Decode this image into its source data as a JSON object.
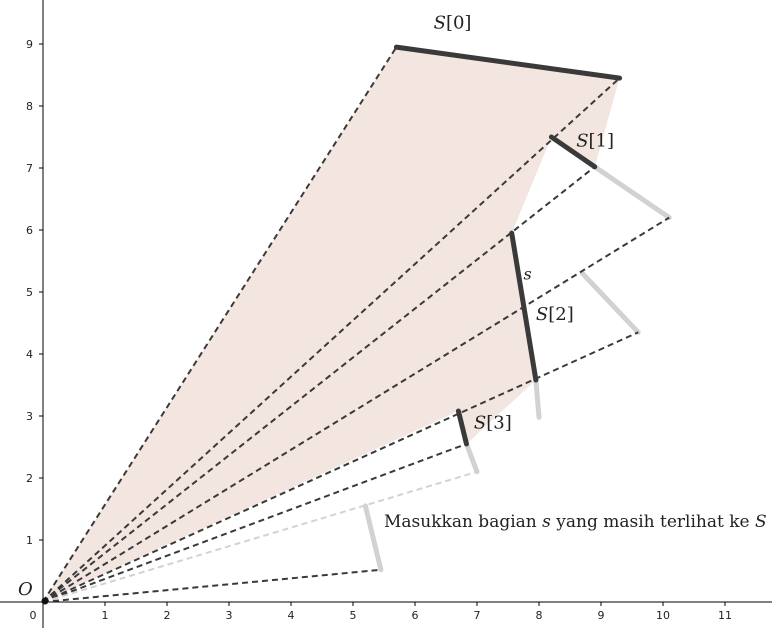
{
  "axes": {
    "x_ticks": [
      "0",
      "1",
      "2",
      "3",
      "4",
      "5",
      "6",
      "7",
      "8",
      "9",
      "10",
      "11"
    ],
    "y_ticks": [
      "1",
      "2",
      "3",
      "4",
      "5",
      "6",
      "7",
      "8",
      "9"
    ],
    "origin_label": "O"
  },
  "segments": [
    {
      "id": "S0",
      "label_var": "S",
      "label_idx": "[0]",
      "p1": [
        5.7,
        8.95
      ],
      "p2": [
        9.3,
        8.45
      ],
      "style": "dark",
      "label_at": [
        6.3,
        9.25
      ]
    },
    {
      "id": "S1",
      "label_var": "S",
      "label_idx": "[1]",
      "p1": [
        8.2,
        7.5
      ],
      "p2": [
        8.9,
        7.02
      ],
      "style": "dark",
      "label_at": [
        8.6,
        7.35
      ]
    },
    {
      "id": "S2",
      "label_var": "S",
      "label_idx": "[2]",
      "p1": [
        7.56,
        5.95
      ],
      "p2": [
        7.95,
        3.58
      ],
      "style": "dark",
      "label_at": [
        7.95,
        4.55
      ]
    },
    {
      "id": "S3",
      "label_var": "S",
      "label_idx": "[3]",
      "p1": [
        6.7,
        3.08
      ],
      "p2": [
        6.83,
        2.55
      ],
      "style": "dark",
      "label_at": [
        6.95,
        2.8
      ]
    },
    {
      "id": "s",
      "label_var": "s",
      "label_idx": "",
      "p1": [
        7.56,
        5.95
      ],
      "p2": [
        7.95,
        3.58
      ],
      "style": "none",
      "label_at": [
        7.75,
        5.2
      ]
    }
  ],
  "ghost_segments": [
    {
      "p1": [
        8.9,
        7.02
      ],
      "p2": [
        10.1,
        6.2
      ]
    },
    {
      "p1": [
        8.7,
        5.3
      ],
      "p2": [
        9.6,
        4.35
      ]
    },
    {
      "p1": [
        7.95,
        3.58
      ],
      "p2": [
        8.0,
        2.98
      ]
    },
    {
      "p1": [
        6.83,
        2.55
      ],
      "p2": [
        7.0,
        2.1
      ]
    },
    {
      "p1": [
        5.2,
        1.55
      ],
      "p2": [
        5.45,
        0.52
      ]
    }
  ],
  "rays": [
    {
      "to": [
        5.7,
        8.95
      ],
      "style": "dark"
    },
    {
      "to": [
        9.3,
        8.45
      ],
      "style": "dark"
    },
    {
      "to": [
        8.9,
        7.02
      ],
      "style": "dark"
    },
    {
      "to": [
        10.1,
        6.2
      ],
      "style": "dark"
    },
    {
      "to": [
        9.6,
        4.35
      ],
      "style": "dark"
    },
    {
      "to": [
        6.83,
        2.55
      ],
      "style": "dark"
    },
    {
      "to": [
        7.0,
        2.1
      ],
      "style": "light"
    },
    {
      "to": [
        5.45,
        0.52
      ],
      "style": "dark"
    }
  ],
  "visible_region": [
    [
      0,
      0
    ],
    [
      5.7,
      8.95
    ],
    [
      9.3,
      8.45
    ],
    [
      8.9,
      7.02
    ],
    [
      8.2,
      7.5
    ],
    [
      7.56,
      5.95
    ],
    [
      7.95,
      3.58
    ],
    [
      6.83,
      2.55
    ],
    [
      6.7,
      3.08
    ]
  ],
  "caption": {
    "pre": "Masukkan bagian ",
    "var1": "s",
    "mid": " yang masih terlihat ke ",
    "var2": "S"
  },
  "colors": {
    "region_fill": "#f3e6e0",
    "dark_segment": "#3a3a3a",
    "ghost_segment": "#d2d2d2",
    "dark_ray": "#3a3a3a",
    "light_ray": "#d2d2d2",
    "axis": "#000000"
  }
}
